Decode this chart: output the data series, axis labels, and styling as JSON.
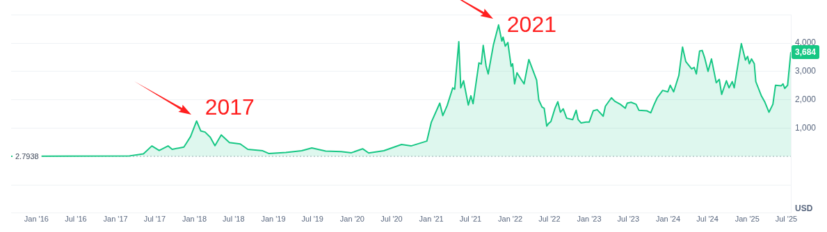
{
  "chart_data": {
    "type": "area",
    "ylabel": "USD",
    "x": [
      "2015-09-06",
      "2016-05-28",
      "2017-03-07",
      "2017-05-10",
      "2017-06-18",
      "2017-07-22",
      "2017-09-01",
      "2017-09-20",
      "2017-11-13",
      "2017-11-25",
      "2017-12-14",
      "2018-01-11",
      "2018-01-30",
      "2018-02-19",
      "2018-03-15",
      "2018-04-06",
      "2018-05-05",
      "2018-06-12",
      "2018-08-01",
      "2018-09-05",
      "2018-11-13",
      "2018-12-12",
      "2019-02-28",
      "2019-05-12",
      "2019-06-28",
      "2019-08-31",
      "2019-11-11",
      "2019-12-28",
      "2020-02-18",
      "2020-03-17",
      "2020-05-26",
      "2020-08-16",
      "2020-09-29",
      "2020-12-11",
      "2021-01-01",
      "2021-02-09",
      "2021-02-23",
      "2021-03-15",
      "2021-04-10",
      "2021-04-19",
      "2021-05-08",
      "2021-05-17",
      "2021-05-30",
      "2021-06-21",
      "2021-07-03",
      "2021-07-13",
      "2021-08-09",
      "2021-08-20",
      "2021-08-29",
      "2021-09-11",
      "2021-09-21",
      "2021-10-15",
      "2021-11-08",
      "2021-11-23",
      "2021-11-29",
      "2021-12-09",
      "2021-12-21",
      "2022-01-05",
      "2022-01-12",
      "2022-01-21",
      "2022-02-01",
      "2022-02-20",
      "2022-03-06",
      "2022-03-28",
      "2022-05-03",
      "2022-05-13",
      "2022-05-28",
      "2022-06-07",
      "2022-06-19",
      "2022-06-27",
      "2022-07-08",
      "2022-07-27",
      "2022-08-09",
      "2022-08-21",
      "2022-09-03",
      "2022-09-19",
      "2022-10-17",
      "2022-11-02",
      "2022-11-11",
      "2022-11-25",
      "2022-12-17",
      "2023-01-01",
      "2023-01-20",
      "2023-02-07",
      "2023-03-07",
      "2023-03-17",
      "2023-04-14",
      "2023-04-29",
      "2023-05-25",
      "2023-06-17",
      "2023-06-26",
      "2023-07-14",
      "2023-08-06",
      "2023-08-19",
      "2023-09-25",
      "2023-10-13",
      "2023-10-29",
      "2023-11-12",
      "2023-12-07",
      "2023-12-31",
      "2024-01-11",
      "2024-01-27",
      "2024-02-20",
      "2024-03-08",
      "2024-03-23",
      "2024-04-19",
      "2024-05-01",
      "2024-05-11",
      "2024-05-26",
      "2024-06-07",
      "2024-06-18",
      "2024-07-04",
      "2024-07-20",
      "2024-08-11",
      "2024-08-25",
      "2024-09-05",
      "2024-09-27",
      "2024-10-09",
      "2024-10-24",
      "2024-11-02",
      "2024-12-05",
      "2024-12-24",
      "2025-01-03",
      "2025-01-11",
      "2025-01-21",
      "2025-02-03",
      "2025-02-10",
      "2025-03-07",
      "2025-03-23",
      "2025-04-12",
      "2025-04-30",
      "2025-05-12",
      "2025-06-07",
      "2025-06-16",
      "2025-06-24",
      "2025-07-07",
      "2025-07-22"
    ],
    "series": [
      {
        "color": "#16c784",
        "values": [
          3,
          12,
          20,
          90,
          370,
          210,
          370,
          250,
          330,
          470,
          700,
          1250,
          900,
          860,
          680,
          380,
          760,
          490,
          440,
          250,
          200,
          100,
          140,
          200,
          300,
          190,
          170,
          130,
          270,
          120,
          200,
          420,
          370,
          540,
          1210,
          1880,
          1440,
          1790,
          2420,
          2370,
          4050,
          2420,
          2670,
          1810,
          2140,
          1860,
          3300,
          3260,
          3920,
          3200,
          2910,
          3930,
          4640,
          4070,
          4210,
          3890,
          4020,
          3180,
          3270,
          2560,
          2950,
          2720,
          2560,
          3420,
          2690,
          1990,
          1740,
          1700,
          1070,
          1160,
          1230,
          1700,
          1930,
          1560,
          1680,
          1350,
          1300,
          1630,
          1300,
          1180,
          1210,
          1210,
          1610,
          1650,
          1420,
          1770,
          2070,
          1950,
          1840,
          1700,
          1880,
          1910,
          1840,
          1630,
          1610,
          1540,
          1840,
          2070,
          2330,
          2280,
          2510,
          2280,
          2860,
          3860,
          3350,
          3090,
          3140,
          2910,
          3720,
          3740,
          3490,
          3000,
          3440,
          2600,
          2720,
          2190,
          2670,
          2420,
          2640,
          2420,
          3980,
          3400,
          3530,
          3270,
          3440,
          3270,
          2640,
          2150,
          1930,
          1560,
          1840,
          2510,
          2490,
          2560,
          2400,
          2510,
          3684
        ],
        "value_labels": [
          null,
          null,
          null,
          null,
          null,
          null,
          null,
          null,
          null,
          null,
          null,
          null,
          null,
          null,
          null,
          null,
          null,
          null,
          null,
          null,
          null,
          null,
          null,
          null,
          null,
          null,
          null,
          null,
          null,
          null,
          null,
          null,
          null,
          null,
          null,
          null,
          null,
          null,
          null,
          null,
          null,
          null,
          null,
          null,
          null,
          null,
          null,
          null,
          null,
          null,
          null,
          null,
          null,
          null,
          null,
          null,
          null,
          null,
          null,
          null,
          null,
          null,
          null,
          null,
          null,
          null,
          null,
          null,
          null,
          null,
          null,
          null,
          null,
          null,
          null,
          null,
          null,
          null,
          null,
          null,
          null,
          null,
          null,
          null,
          null,
          null,
          null,
          null,
          null,
          null,
          null,
          null,
          null,
          null,
          null,
          null,
          null,
          null,
          null,
          null,
          null,
          null,
          null,
          null,
          null,
          null,
          null,
          null,
          null,
          null,
          null,
          null,
          null,
          null,
          null,
          null,
          null,
          null,
          null,
          null,
          null,
          null,
          null,
          null,
          null,
          null,
          null,
          null,
          null,
          null,
          null,
          null,
          null,
          null,
          null,
          null,
          "3,684"
        ]
      }
    ],
    "xlim": [
      "2015-09-06",
      "2025-07-22"
    ],
    "xticks": [
      {
        "value": "2016-01-01",
        "label": "Jan '16"
      },
      {
        "value": "2016-07-01",
        "label": "Jul '16"
      },
      {
        "value": "2017-01-01",
        "label": "Jan '17"
      },
      {
        "value": "2017-07-01",
        "label": "Jul '17"
      },
      {
        "value": "2018-01-01",
        "label": "Jan '18"
      },
      {
        "value": "2018-07-01",
        "label": "Jul '18"
      },
      {
        "value": "2019-01-01",
        "label": "Jan '19"
      },
      {
        "value": "2019-07-01",
        "label": "Jul '19"
      },
      {
        "value": "2020-01-01",
        "label": "Jan '20"
      },
      {
        "value": "2020-07-01",
        "label": "Jul '20"
      },
      {
        "value": "2021-01-01",
        "label": "Jan '21"
      },
      {
        "value": "2021-07-01",
        "label": "Jul '21"
      },
      {
        "value": "2022-01-01",
        "label": "Jan '22"
      },
      {
        "value": "2022-07-01",
        "label": "Jul '22"
      },
      {
        "value": "2023-01-01",
        "label": "Jan '23"
      },
      {
        "value": "2023-07-01",
        "label": "Jul '23"
      },
      {
        "value": "2024-01-01",
        "label": "Jan '24"
      },
      {
        "value": "2024-07-01",
        "label": "Jul '24"
      },
      {
        "value": "2025-01-01",
        "label": "Jan '25"
      },
      {
        "value": "2025-07-01",
        "label": "Jul '25"
      }
    ],
    "ylim": [
      -2000,
      5000
    ],
    "yticks": [
      {
        "value": -1000,
        "label": null
      },
      {
        "value": 1000,
        "label": "1,000"
      },
      {
        "value": 2000,
        "label": "2,000"
      },
      {
        "value": 3000,
        "label": "3,000"
      },
      {
        "value": 4000,
        "label": "4,000"
      },
      {
        "value": 5000,
        "label": null
      }
    ],
    "ref_lines": [
      {
        "axis": "y",
        "value": 2.7938,
        "label": "2.7938",
        "color": "#a0a7b4",
        "line_style": "dotted"
      }
    ],
    "annotations": [
      {
        "text": "2017",
        "x": "2018-01-11",
        "y": 1250
      },
      {
        "text": "2021",
        "x": "2021-11-08",
        "y": 4640
      }
    ],
    "grid": "y",
    "legend": false,
    "marker": "none",
    "line_style": "solid"
  }
}
